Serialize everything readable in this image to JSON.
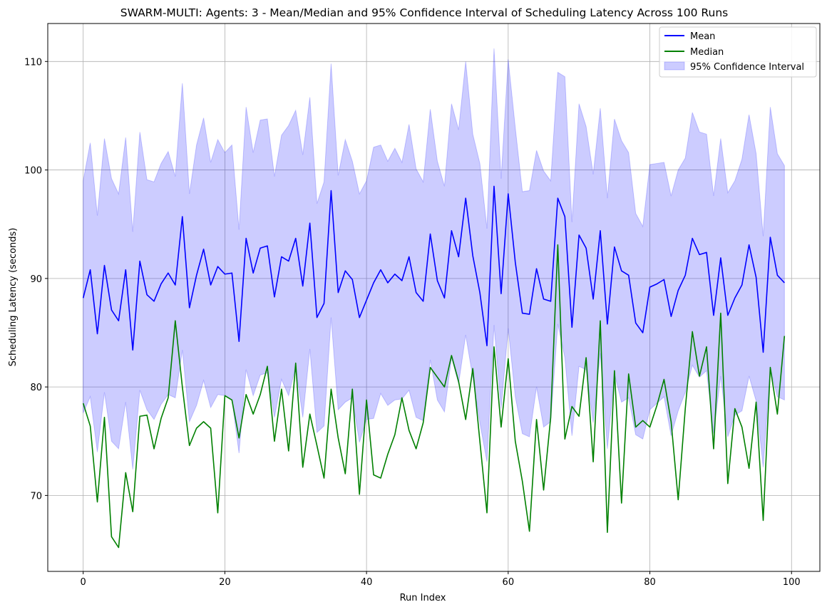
{
  "chart_data": {
    "type": "line",
    "title": "SWARM-MULTI: Agents: 3 - Mean/Median and 95% Confidence Interval of Scheduling Latency Across 100 Runs",
    "xlabel": "Run Index",
    "ylabel": "Scheduling Latency (seconds)",
    "xlim": [
      -5,
      104
    ],
    "ylim": [
      63.0,
      113.5
    ],
    "xticks": [
      0,
      20,
      40,
      60,
      80,
      100
    ],
    "yticks": [
      70,
      80,
      90,
      100,
      110
    ],
    "grid": true,
    "legend_position": "top-right",
    "x": [
      0,
      1,
      2,
      3,
      4,
      5,
      6,
      7,
      8,
      9,
      10,
      11,
      12,
      13,
      14,
      15,
      16,
      17,
      18,
      19,
      20,
      21,
      22,
      23,
      24,
      25,
      26,
      27,
      28,
      29,
      30,
      31,
      32,
      33,
      34,
      35,
      36,
      37,
      38,
      39,
      40,
      41,
      42,
      43,
      44,
      45,
      46,
      47,
      48,
      49,
      50,
      51,
      52,
      53,
      54,
      55,
      56,
      57,
      58,
      59,
      60,
      61,
      62,
      63,
      64,
      65,
      66,
      67,
      68,
      69,
      70,
      71,
      72,
      73,
      74,
      75,
      76,
      77,
      78,
      79,
      80,
      81,
      82,
      83,
      84,
      85,
      86,
      87,
      88,
      89,
      90,
      91,
      92,
      93,
      94,
      95,
      96,
      97,
      98,
      99
    ],
    "series": [
      {
        "name": "Mean",
        "color": "#0000ff",
        "values": [
          88.2,
          90.8,
          84.9,
          91.2,
          87.1,
          86.1,
          90.8,
          83.4,
          91.6,
          88.5,
          87.9,
          89.5,
          90.5,
          89.4,
          95.7,
          87.3,
          90.3,
          92.7,
          89.4,
          91.1,
          90.4,
          90.5,
          84.2,
          93.7,
          90.5,
          92.8,
          93.0,
          88.3,
          92.0,
          91.6,
          93.7,
          89.3,
          95.1,
          86.4,
          87.7,
          98.1,
          88.7,
          90.7,
          89.9,
          86.4,
          88.0,
          89.6,
          90.8,
          89.6,
          90.4,
          89.8,
          92.0,
          88.7,
          87.9,
          94.1,
          89.8,
          88.2,
          94.4,
          92.0,
          97.4,
          92.1,
          88.7,
          83.8,
          98.5,
          88.6,
          97.8,
          91.5,
          86.8,
          86.7,
          90.9,
          88.1,
          87.9,
          97.4,
          95.7,
          85.5,
          94.0,
          92.8,
          88.1,
          94.4,
          85.8,
          92.9,
          90.7,
          90.3,
          85.9,
          85.0,
          89.2,
          89.5,
          89.9,
          86.5,
          88.9,
          90.3,
          93.7,
          92.2,
          92.4,
          86.6,
          91.9,
          86.6,
          88.2,
          89.4,
          93.1,
          90.1,
          83.2,
          93.8,
          90.3,
          89.6
        ]
      },
      {
        "name": "Median",
        "color": "#008000",
        "values": [
          78.5,
          76.4,
          69.4,
          77.2,
          66.2,
          65.2,
          72.1,
          68.5,
          77.3,
          77.4,
          74.3,
          77.1,
          79.0,
          86.1,
          80.0,
          74.6,
          76.2,
          76.8,
          76.2,
          68.4,
          79.2,
          78.8,
          75.3,
          79.3,
          77.5,
          79.3,
          81.9,
          75.0,
          79.8,
          74.1,
          82.2,
          72.6,
          77.5,
          74.6,
          71.6,
          79.8,
          75.3,
          72.0,
          79.8,
          70.1,
          78.8,
          71.9,
          71.6,
          73.8,
          75.6,
          79.0,
          76.0,
          74.3,
          76.7,
          81.8,
          80.9,
          80.0,
          82.9,
          80.5,
          77.0,
          81.7,
          75.0,
          68.4,
          83.7,
          76.3,
          82.6,
          75.0,
          71.3,
          66.7,
          77.0,
          70.5,
          77.2,
          93.1,
          75.2,
          78.2,
          77.3,
          82.7,
          73.1,
          86.1,
          66.6,
          81.5,
          69.3,
          81.2,
          76.3,
          76.9,
          76.3,
          78.3,
          80.7,
          76.8,
          69.6,
          78.0,
          85.1,
          81.0,
          83.7,
          74.3,
          86.8,
          71.1,
          78.0,
          76.3,
          72.5,
          78.6,
          67.7,
          81.8,
          77.5,
          84.7
        ]
      },
      {
        "name": "95% Confidence Interval",
        "color": "#0000ff",
        "fill_opacity": 0.2,
        "upper": [
          99.0,
          102.5,
          95.8,
          102.9,
          99.2,
          97.8,
          103.0,
          94.3,
          103.5,
          99.1,
          98.9,
          100.6,
          101.7,
          99.4,
          108.0,
          97.8,
          102.3,
          104.8,
          100.7,
          102.8,
          101.6,
          102.3,
          94.5,
          105.8,
          101.6,
          104.6,
          104.7,
          99.4,
          103.2,
          104.1,
          105.5,
          101.4,
          106.7,
          96.9,
          98.9,
          109.8,
          99.5,
          102.8,
          100.8,
          97.8,
          99.0,
          102.1,
          102.3,
          100.8,
          102.0,
          100.7,
          104.2,
          100.1,
          98.9,
          105.6,
          100.8,
          98.5,
          106.1,
          103.7,
          110.0,
          103.3,
          100.6,
          94.6,
          111.2,
          99.2,
          110.2,
          103.9,
          98.0,
          98.1,
          101.8,
          99.9,
          99.0,
          109.0,
          108.6,
          95.2,
          106.1,
          104.0,
          99.6,
          105.7,
          97.4,
          104.7,
          102.7,
          101.6,
          96.0,
          94.8,
          100.5,
          100.6,
          100.7,
          97.6,
          100.0,
          101.1,
          105.3,
          103.5,
          103.3,
          97.6,
          102.9,
          97.9,
          99.0,
          101.0,
          105.1,
          101.5,
          93.9,
          105.8,
          101.5,
          100.4
        ],
        "lower": [
          77.6,
          79.1,
          74.0,
          79.5,
          75.0,
          74.3,
          78.6,
          72.4,
          79.7,
          77.9,
          77.0,
          78.4,
          79.3,
          79.0,
          83.4,
          76.8,
          78.3,
          80.6,
          78.1,
          79.3,
          79.2,
          78.8,
          73.9,
          81.6,
          79.2,
          81.1,
          81.3,
          77.2,
          80.7,
          79.2,
          81.9,
          77.2,
          83.5,
          75.8,
          76.4,
          86.4,
          77.9,
          78.6,
          79.0,
          74.9,
          77.0,
          77.1,
          79.4,
          78.3,
          78.8,
          78.9,
          79.7,
          77.2,
          76.9,
          82.5,
          78.8,
          77.7,
          82.7,
          80.3,
          84.8,
          80.9,
          76.7,
          73.1,
          85.7,
          78.0,
          85.4,
          79.1,
          75.7,
          75.4,
          80.0,
          76.3,
          76.8,
          85.8,
          82.7,
          75.5,
          81.9,
          81.6,
          76.7,
          83.1,
          74.3,
          81.2,
          78.6,
          79.0,
          75.6,
          75.2,
          77.9,
          78.5,
          79.1,
          75.5,
          77.8,
          79.5,
          82.0,
          80.9,
          81.5,
          75.7,
          81.0,
          75.4,
          77.4,
          77.8,
          81.0,
          78.7,
          72.6,
          81.7,
          79.1,
          78.8
        ]
      }
    ]
  }
}
